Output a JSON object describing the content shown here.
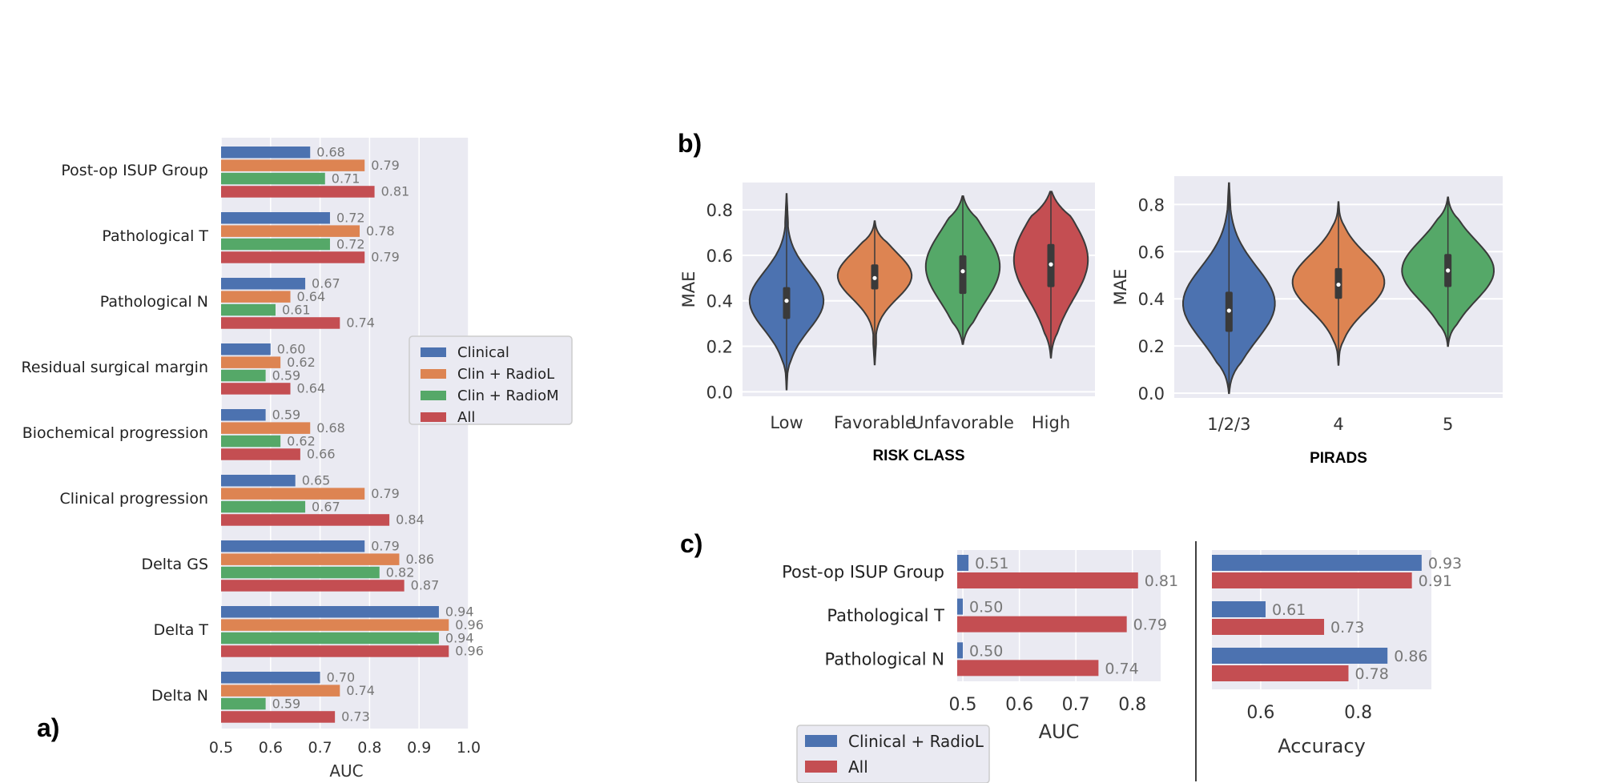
{
  "panel_labels": {
    "a": "a)",
    "b": "b)",
    "c": "c)"
  },
  "colors": {
    "Clinical": "#4c72b0",
    "Clin + RadioL": "#dd8452",
    "Clin + RadioM": "#55a868",
    "All": "#c44e52",
    "Clinical + RadioL": "#4c72b0",
    "axes_bg": "#eaeaf2",
    "grid": "#ffffff"
  },
  "chart_data": [
    {
      "id": "a",
      "type": "bar",
      "orientation": "horizontal",
      "categories": [
        "Post-op ISUP Group",
        "Pathological T",
        "Pathological N",
        "Residual surgical margin",
        "Biochemical progression",
        "Clinical progression",
        "Delta GS",
        "Delta T",
        "Delta N"
      ],
      "series": [
        {
          "name": "Clinical",
          "values": [
            0.68,
            0.72,
            0.67,
            0.6,
            0.59,
            0.65,
            0.79,
            0.94,
            0.7
          ]
        },
        {
          "name": "Clin + RadioL",
          "values": [
            0.79,
            0.78,
            0.64,
            0.62,
            0.68,
            0.79,
            0.86,
            0.96,
            0.74
          ]
        },
        {
          "name": "Clin + RadioM",
          "values": [
            0.71,
            0.72,
            0.61,
            0.59,
            0.62,
            0.67,
            0.82,
            0.94,
            0.59
          ]
        },
        {
          "name": "All",
          "values": [
            0.81,
            0.79,
            0.74,
            0.64,
            0.66,
            0.84,
            0.87,
            0.96,
            0.73
          ]
        }
      ],
      "xlabel": "AUC",
      "xlim": [
        0.5,
        1.0
      ],
      "xticks": [
        "0.5",
        "0.6",
        "0.7",
        "0.8",
        "0.9",
        "1.0"
      ],
      "legend": [
        "Clinical",
        "Clin + RadioL",
        "Clin + RadioM",
        "All"
      ],
      "legend_position": "right"
    },
    {
      "id": "b1",
      "type": "violin",
      "categories": [
        "Low",
        "Favorable",
        "Unfavorable",
        "High"
      ],
      "colors": [
        "#4c72b0",
        "#dd8452",
        "#55a868",
        "#c44e52"
      ],
      "distributions": [
        {
          "min": 0.01,
          "q1": 0.32,
          "median": 0.4,
          "q3": 0.46,
          "max": 0.87,
          "mode": 0.4
        },
        {
          "min": 0.12,
          "q1": 0.45,
          "median": 0.5,
          "q3": 0.56,
          "max": 0.75,
          "mode": 0.51
        },
        {
          "min": 0.21,
          "q1": 0.43,
          "median": 0.53,
          "q3": 0.6,
          "max": 0.86,
          "mode": 0.55
        },
        {
          "min": 0.15,
          "q1": 0.46,
          "median": 0.56,
          "q3": 0.65,
          "max": 0.88,
          "mode": 0.58
        }
      ],
      "xlabel": "RISK CLASS",
      "ylabel": "MAE",
      "ylim": [
        -0.02,
        0.92
      ],
      "yticks": [
        "0.0",
        "0.2",
        "0.4",
        "0.6",
        "0.8"
      ]
    },
    {
      "id": "b2",
      "type": "violin",
      "categories": [
        "1/2/3",
        "4",
        "5"
      ],
      "colors": [
        "#4c72b0",
        "#dd8452",
        "#55a868"
      ],
      "distributions": [
        {
          "min": 0.0,
          "q1": 0.26,
          "median": 0.35,
          "q3": 0.43,
          "max": 0.89,
          "mode": 0.38
        },
        {
          "min": 0.12,
          "q1": 0.4,
          "median": 0.46,
          "q3": 0.53,
          "max": 0.81,
          "mode": 0.47
        },
        {
          "min": 0.2,
          "q1": 0.45,
          "median": 0.52,
          "q3": 0.59,
          "max": 0.83,
          "mode": 0.52
        }
      ],
      "xlabel": "PIRADS",
      "ylabel": "MAE",
      "ylim": [
        -0.02,
        0.92
      ],
      "yticks": [
        "0.0",
        "0.2",
        "0.4",
        "0.6",
        "0.8"
      ]
    },
    {
      "id": "c1",
      "type": "bar",
      "orientation": "horizontal",
      "categories": [
        "Post-op ISUP Group",
        "Pathological T",
        "Pathological N"
      ],
      "series": [
        {
          "name": "Clinical + RadioL",
          "values": [
            0.51,
            0.5,
            0.5
          ]
        },
        {
          "name": "All",
          "values": [
            0.81,
            0.79,
            0.74
          ]
        }
      ],
      "xlabel": "AUC",
      "xlim": [
        0.49,
        0.85
      ],
      "xticks": [
        "0.5",
        "0.6",
        "0.7",
        "0.8"
      ],
      "legend": [
        "Clinical + RadioL",
        "All"
      ],
      "legend_position": "bottom-left"
    },
    {
      "id": "c2",
      "type": "bar",
      "orientation": "horizontal",
      "categories": [
        "Post-op ISUP Group",
        "Pathological T",
        "Pathological N"
      ],
      "series": [
        {
          "name": "Clinical + RadioL",
          "values": [
            0.93,
            0.61,
            0.86
          ]
        },
        {
          "name": "All",
          "values": [
            0.91,
            0.73,
            0.78
          ]
        }
      ],
      "xlabel": "Accuracy",
      "xlim": [
        0.5,
        0.95
      ],
      "xticks": [
        "0.6",
        "0.8"
      ]
    }
  ]
}
